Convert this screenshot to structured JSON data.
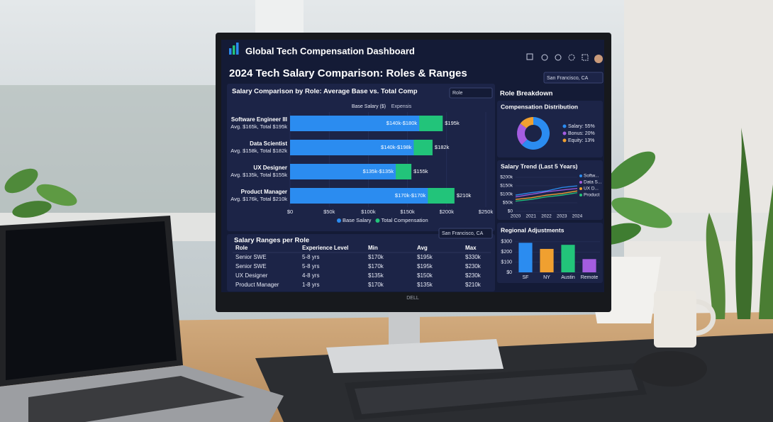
{
  "header": {
    "title": "Global Tech Compensation Dashboard",
    "brand": "DELL"
  },
  "page_title": "2024 Tech Salary Comparison: Roles & Ranges",
  "location_filter": "San Francisco, CA",
  "role_breakdown_title": "Role Breakdown",
  "chart_data": [
    {
      "type": "bar",
      "orientation": "horizontal",
      "title": "Salary Comparison by Role: Average Base vs. Total Comp",
      "filter": "Role",
      "column_headers": [
        "Base Salary ($)",
        "Expensis"
      ],
      "categories": [
        "Software Engineer III",
        "Data Scientist",
        "UX Designer",
        "Product Manager"
      ],
      "category_notes": [
        "Avg. $165k, Total $195k",
        "Avg. $158k, Total $182k",
        "Avg. $135k, Total $155k",
        "Avg. $176k, Total $210k"
      ],
      "range_labels": [
        "$140k-$180k",
        "$140k-$198k",
        "$135k-$135k",
        "$170k-$170k"
      ],
      "series": [
        {
          "name": "Base Salary",
          "color": "#2b8cf0",
          "values": [
            165,
            158,
            135,
            176
          ]
        },
        {
          "name": "Total Compensation",
          "color": "#22c47a",
          "values": [
            195,
            182,
            155,
            210
          ],
          "value_labels": [
            "$195k",
            "$182k",
            "$155k",
            "$210k"
          ]
        }
      ],
      "xlim": [
        0,
        250
      ],
      "xticks": [
        {
          "value": 0,
          "label": "$0"
        },
        {
          "value": 50,
          "label": "$50k"
        },
        {
          "value": 100,
          "label": "$100k"
        },
        {
          "value": 150,
          "label": "$150k"
        },
        {
          "value": 200,
          "label": "$200k"
        },
        {
          "value": 250,
          "label": "$250k"
        }
      ]
    },
    {
      "type": "pie",
      "title": "Compensation Distribution",
      "values": [
        55,
        20,
        13
      ],
      "value_labels": [
        "Salary: 55%",
        "Bonus: 20%",
        "Equity: 13%"
      ],
      "colors": [
        "#2b8cf0",
        "#a45de0",
        "#f0a030"
      ]
    },
    {
      "type": "line",
      "title": "Salary Trend (Last 5 Years)",
      "x": [
        "2020",
        "2021",
        "2022",
        "2023",
        "2024"
      ],
      "series": [
        {
          "name": "Softw...",
          "color": "#2b8cf0",
          "values": [
            95,
            110,
            120,
            140,
            150
          ]
        },
        {
          "name": "Data S...",
          "color": "#a45de0",
          "values": [
            85,
            100,
            115,
            125,
            135
          ]
        },
        {
          "name": "UX D...",
          "color": "#f0a030",
          "values": [
            70,
            80,
            95,
            105,
            120
          ]
        },
        {
          "name": "Product",
          "color": "#22c47a",
          "values": [
            60,
            70,
            85,
            95,
            110
          ]
        }
      ],
      "ylim": [
        0,
        200
      ],
      "yticks": [
        {
          "value": 0,
          "label": "$0"
        },
        {
          "value": 50,
          "label": "$50k"
        },
        {
          "value": 100,
          "label": "$100k"
        },
        {
          "value": 150,
          "label": "$150k"
        },
        {
          "value": 200,
          "label": "$200k"
        }
      ]
    },
    {
      "type": "bar",
      "orientation": "vertical",
      "title": "Regional Adjustments",
      "categories": [
        "SF",
        "NY",
        "Austin",
        "Remote"
      ],
      "values": [
        290,
        230,
        270,
        130
      ],
      "colors": [
        "#2b8cf0",
        "#f0a030",
        "#22c47a",
        "#a45de0"
      ],
      "ylim": [
        0,
        320
      ],
      "yticks": [
        {
          "value": 0,
          "label": "$0"
        },
        {
          "value": 100,
          "label": "$100"
        },
        {
          "value": 200,
          "label": "$200"
        },
        {
          "value": 300,
          "label": "$300"
        }
      ]
    }
  ],
  "table": {
    "title": "Salary Ranges per Role",
    "filter": "San Francisco, CA",
    "columns": [
      "Role",
      "Experience Level",
      "Min",
      "Avg",
      "Max"
    ],
    "rows": [
      [
        "Senior SWE",
        "5-8 yrs",
        "$170k",
        "$195k",
        "$330k"
      ],
      [
        "Senior SWE",
        "5-8 yrs",
        "$170k",
        "$195k",
        "$230k"
      ],
      [
        "UX Designer",
        "4-8 yrs",
        "$135k",
        "$150k",
        "$230k"
      ],
      [
        "Product Manager",
        "1-8 yrs",
        "$170k",
        "$135k",
        "$210k"
      ]
    ]
  }
}
